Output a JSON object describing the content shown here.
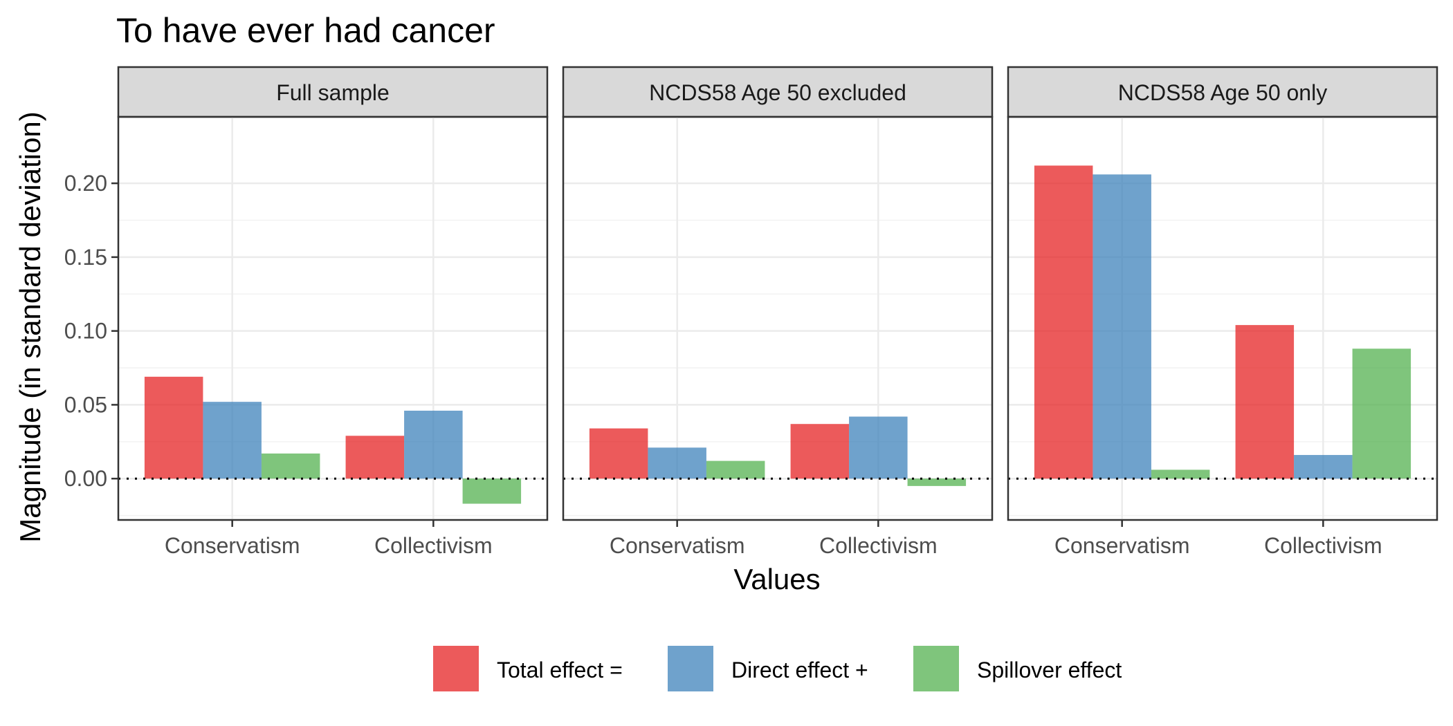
{
  "chart_data": {
    "type": "bar",
    "title": "To have ever had cancer",
    "xlabel": "Values",
    "ylabel": "Magnitude (in standard deviation)",
    "ylim": [
      -0.028,
      0.245
    ],
    "y_ticks": [
      0.0,
      0.05,
      0.1,
      0.15,
      0.2
    ],
    "y_tick_labels": [
      "0.00",
      "0.05",
      "0.10",
      "0.15",
      "0.20"
    ],
    "categories": [
      "Conservatism",
      "Collectivism"
    ],
    "grid": true,
    "legend_position": "bottom",
    "reference_line": 0,
    "series": [
      {
        "name": "Total effect =",
        "color": "#E41A1C"
      },
      {
        "name": "Direct effect +",
        "color": "#377EB8"
      },
      {
        "name": "Spillover effect",
        "color": "#4DAF4A"
      }
    ],
    "panels": [
      {
        "label": "Full sample",
        "values": [
          [
            0.069,
            0.052,
            0.017
          ],
          [
            0.029,
            0.046,
            -0.017
          ]
        ]
      },
      {
        "label": "NCDS58 Age 50 excluded",
        "values": [
          [
            0.034,
            0.021,
            0.012
          ],
          [
            0.037,
            0.042,
            -0.005
          ]
        ]
      },
      {
        "label": "NCDS58 Age 50 only",
        "values": [
          [
            0.212,
            0.206,
            0.006
          ],
          [
            0.104,
            0.016,
            0.088
          ]
        ]
      }
    ]
  }
}
